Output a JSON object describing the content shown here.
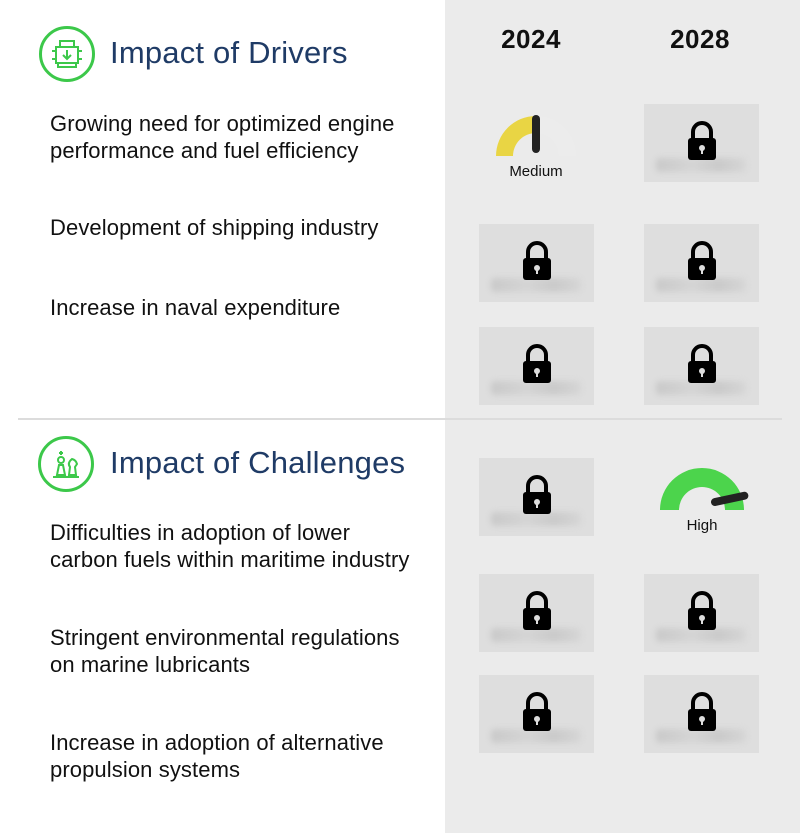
{
  "years": [
    "2024",
    "2028"
  ],
  "drivers": {
    "title": "Impact of Drivers",
    "icon": "engine-icon",
    "items": [
      "Growing need for optimized engine performance and fuel efficiency",
      "Development of shipping industry",
      "Increase in naval expenditure"
    ],
    "gauge_2024": {
      "label": "Medium",
      "level": 0.5,
      "color": "#e9d544"
    }
  },
  "challenges": {
    "title": "Impact of Challenges",
    "icon": "chess-icon",
    "items": [
      "Difficulties in adoption of lower carbon fuels within maritime industry",
      "Stringent environmental regulations on marine lubricants",
      "Increase in adoption of alternative propulsion systems"
    ],
    "gauge_2028": {
      "label": "High",
      "level": 0.9,
      "color": "#4cd44c"
    }
  },
  "colors": {
    "accent_green": "#3cc84a",
    "title_blue": "#1f3b66",
    "panel_gray": "#ebebeb"
  }
}
